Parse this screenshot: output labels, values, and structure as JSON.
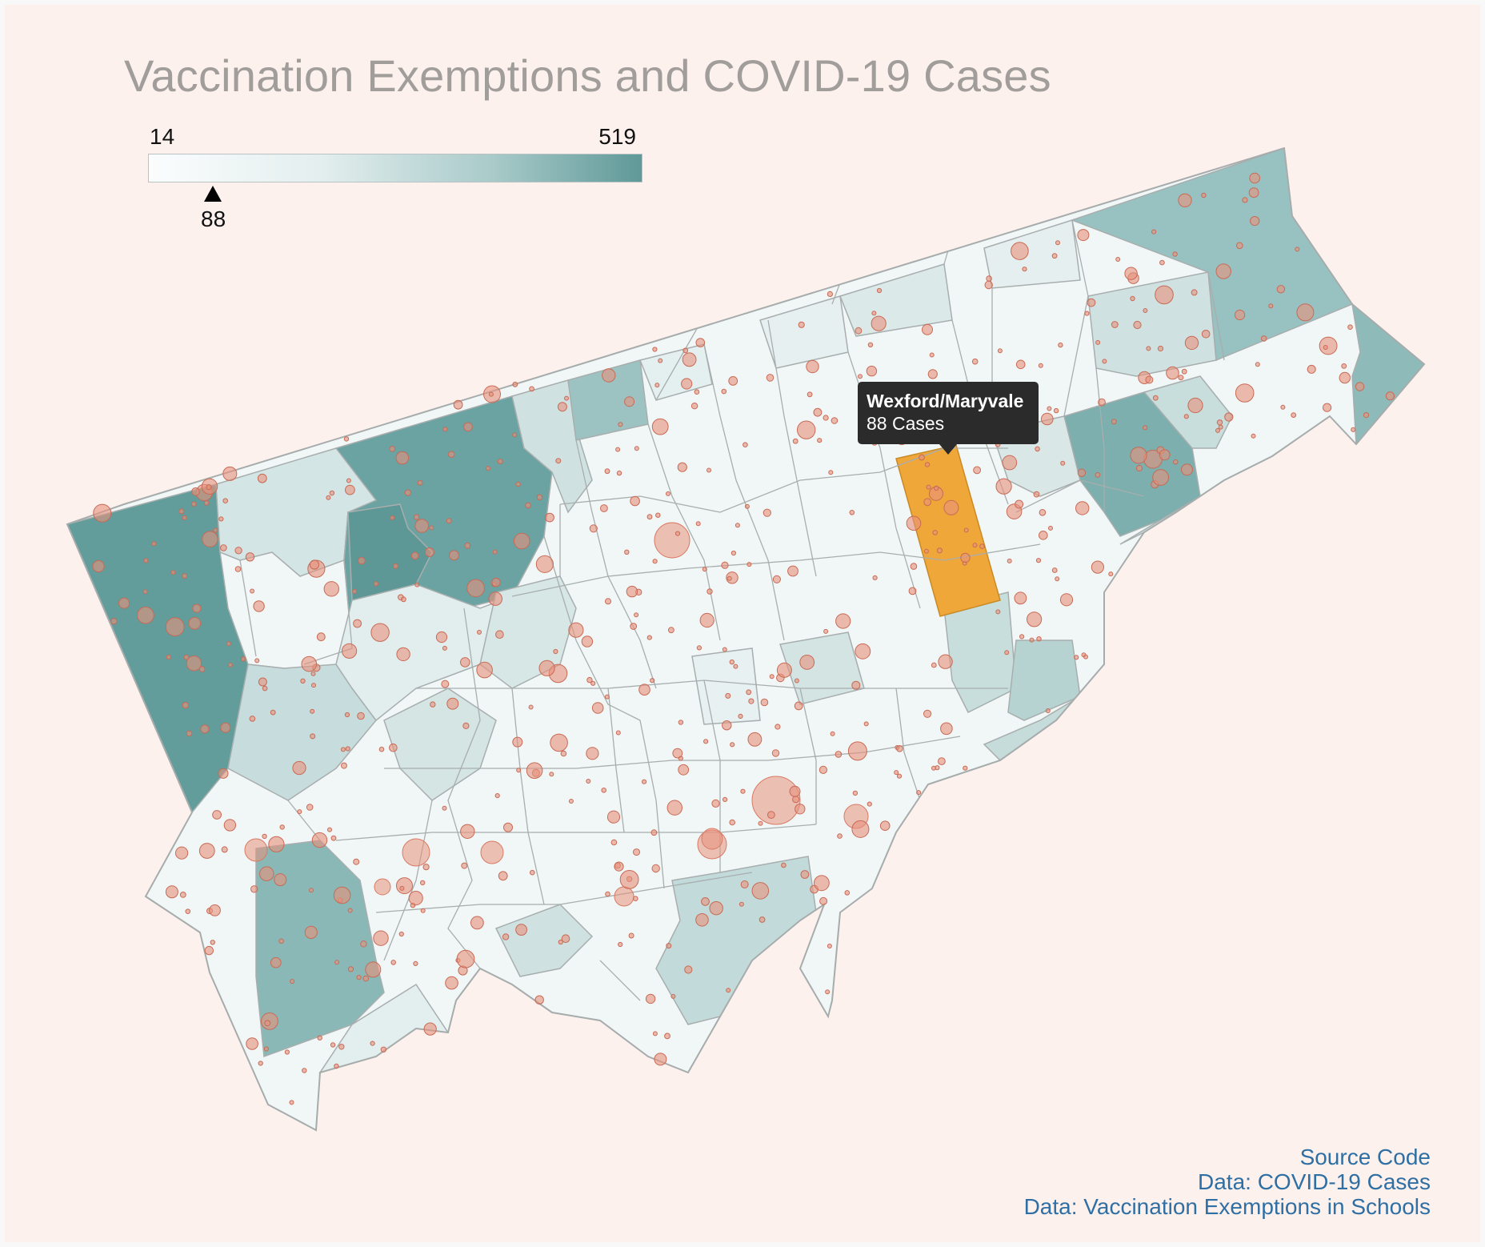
{
  "title": "Vaccination Exemptions and COVID-19 Cases",
  "legend": {
    "min": "14",
    "max": "519",
    "marker_value": "88",
    "marker_numeric": 88,
    "color_low": "#fbfdfd",
    "color_high": "#5f9998"
  },
  "tooltip": {
    "name": "Wexford/Maryvale",
    "cases": "88 Cases"
  },
  "colors": {
    "background": "#fdf1ee",
    "highlight": "#f0a73a",
    "bubble": "#e8917c",
    "boundary": "#a8aeae"
  },
  "links": [
    "Source Code",
    "Data: COVID-19 Cases",
    "Data: Vaccination Exemptions in Schools"
  ]
}
